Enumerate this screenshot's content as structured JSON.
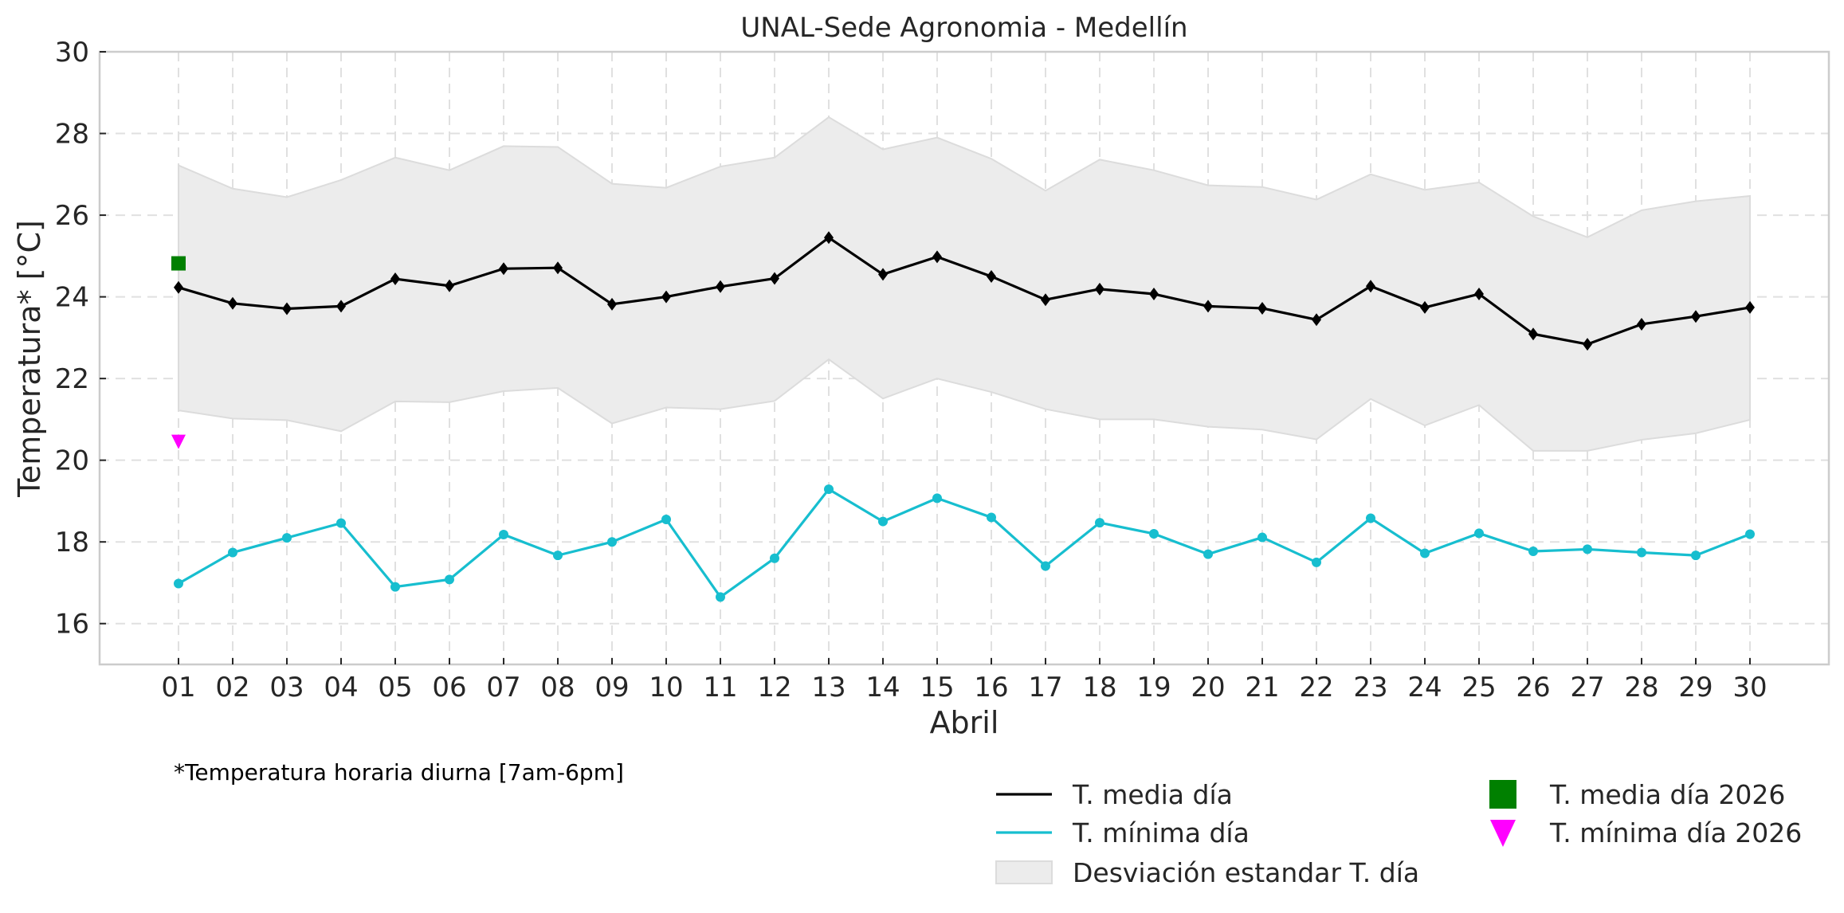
{
  "chart_data": {
    "type": "line",
    "title": "UNAL-Sede Agronomia - Medellín",
    "xlabel": "Abril",
    "ylabel": "Temperatura* [°C]",
    "ylim": [
      15,
      30
    ],
    "yticks": [
      16,
      18,
      20,
      22,
      24,
      26,
      28,
      30
    ],
    "grid": true,
    "categories": [
      "01",
      "02",
      "03",
      "04",
      "05",
      "06",
      "07",
      "08",
      "09",
      "10",
      "11",
      "12",
      "13",
      "14",
      "15",
      "16",
      "17",
      "18",
      "19",
      "20",
      "21",
      "22",
      "23",
      "24",
      "25",
      "26",
      "27",
      "28",
      "29",
      "30"
    ],
    "series": [
      {
        "name": "T. media día",
        "kind": "line",
        "color": "#000000",
        "marker": "diamond",
        "values": [
          24.23,
          23.84,
          23.71,
          23.77,
          24.44,
          24.27,
          24.69,
          24.71,
          23.82,
          24.0,
          24.25,
          24.45,
          25.45,
          24.55,
          24.98,
          24.5,
          23.93,
          24.19,
          24.07,
          23.77,
          23.72,
          23.44,
          24.26,
          23.74,
          24.07,
          23.09,
          22.84,
          23.33,
          23.52,
          23.74
        ]
      },
      {
        "name": "T. mínima día",
        "kind": "line",
        "color": "#17becf",
        "marker": "circle",
        "values": [
          16.98,
          17.74,
          18.1,
          18.46,
          16.9,
          17.08,
          18.18,
          17.67,
          18.0,
          18.55,
          16.65,
          17.6,
          19.29,
          18.5,
          19.07,
          18.6,
          17.41,
          18.47,
          18.2,
          17.7,
          18.11,
          17.5,
          18.58,
          17.72,
          18.21,
          17.77,
          17.82,
          17.74,
          17.67,
          18.19
        ]
      },
      {
        "name": "Desviación estandar T. día",
        "kind": "band",
        "color": "#ececec",
        "upper": [
          27.22,
          26.65,
          26.44,
          26.86,
          27.41,
          27.1,
          27.69,
          27.67,
          26.77,
          26.67,
          27.19,
          27.41,
          28.4,
          27.61,
          27.9,
          27.38,
          26.6,
          27.36,
          27.1,
          26.73,
          26.69,
          26.38,
          27.0,
          26.62,
          26.8,
          25.97,
          25.46,
          26.12,
          26.34,
          26.47
        ],
        "lower": [
          21.22,
          21.02,
          20.98,
          20.71,
          21.44,
          21.42,
          21.69,
          21.77,
          20.9,
          21.29,
          21.25,
          21.45,
          22.47,
          21.51,
          22.0,
          21.67,
          21.25,
          21.0,
          21.0,
          20.82,
          20.75,
          20.51,
          21.5,
          20.85,
          21.35,
          20.23,
          20.23,
          20.5,
          20.66,
          20.99
        ]
      },
      {
        "name": "T. media día 2026",
        "kind": "scatter",
        "color": "#008000",
        "marker": "square",
        "points": [
          {
            "x": "01",
            "y": 24.82
          }
        ]
      },
      {
        "name": "T. mínima día 2026",
        "kind": "scatter",
        "color": "#ff00ff",
        "marker": "triangle-down",
        "points": [
          {
            "x": "01",
            "y": 20.45
          }
        ]
      }
    ],
    "legend": {
      "placement": "bottom-right",
      "columns": [
        [
          "T. media día",
          "T. mínima día",
          "Desviación estandar T. día"
        ],
        [
          "T. media día 2026",
          "T. mínima día 2026"
        ]
      ]
    },
    "annotations": [
      "*Temperatura horaria diurna [7am-6pm]"
    ]
  }
}
